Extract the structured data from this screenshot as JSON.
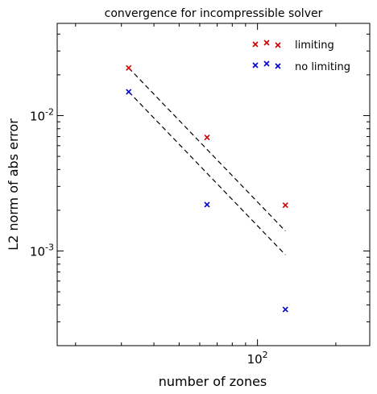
{
  "chart_data": {
    "type": "scatter",
    "title": "convergence for incompressible solver",
    "xlabel": "number of zones",
    "ylabel": "L2 norm of abs error",
    "x_scale": "log",
    "y_scale": "log",
    "xlim": [
      17,
      270
    ],
    "ylim": [
      0.0002,
      0.048
    ],
    "x_ticks": [
      {
        "value": 100,
        "base": "10",
        "exp": "2"
      }
    ],
    "y_ticks": [
      {
        "value": 0.01,
        "base": "10",
        "exp": "-2"
      },
      {
        "value": 0.001,
        "base": "10",
        "exp": "-3"
      }
    ],
    "grid": false,
    "legend_position": "top-right",
    "series": [
      {
        "name": "limiting",
        "color": "#cc0000",
        "marker": "x",
        "x": [
          32,
          64,
          128
        ],
        "y": [
          0.0225,
          0.0069,
          0.00218
        ]
      },
      {
        "name": "no limiting",
        "color": "#0000cc",
        "marker": "x",
        "x": [
          32,
          64,
          128
        ],
        "y": [
          0.015,
          0.0022,
          0.00037
        ]
      }
    ],
    "reference_lines": [
      {
        "style": "dashed",
        "color": "#000000",
        "x": [
          32,
          128
        ],
        "y": [
          0.0225,
          0.00140625
        ]
      },
      {
        "style": "dashed",
        "color": "#000000",
        "x": [
          32,
          128
        ],
        "y": [
          0.015,
          0.0009375
        ]
      }
    ]
  }
}
